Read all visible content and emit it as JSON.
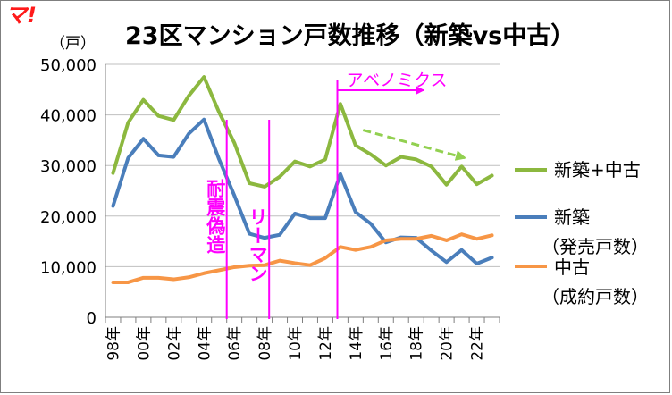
{
  "logo": {
    "text": "マ!",
    "color": "#ff1a1a"
  },
  "chart_data": {
    "type": "line",
    "title": "23区マンション戸数推移（新築vs中古）",
    "ylabel": "（戸）",
    "xlabel": "",
    "ylim": [
      0,
      50000
    ],
    "yticks": [
      0,
      10000,
      20000,
      30000,
      40000,
      50000
    ],
    "ytick_labels": [
      "0",
      "10,000",
      "20,000",
      "30,000",
      "40,000",
      "50,000"
    ],
    "x": [
      1998,
      1999,
      2000,
      2001,
      2002,
      2003,
      2004,
      2005,
      2006,
      2007,
      2008,
      2009,
      2010,
      2011,
      2012,
      2013,
      2014,
      2015,
      2016,
      2017,
      2018,
      2019,
      2020,
      2021,
      2022,
      2023
    ],
    "xtick_labels": [
      "98年",
      "00年",
      "02年",
      "04年",
      "06年",
      "08年",
      "10年",
      "12年",
      "14年",
      "16年",
      "18年",
      "20年",
      "22年"
    ],
    "xtick_years": [
      1998,
      2000,
      2002,
      2004,
      2006,
      2008,
      2010,
      2012,
      2014,
      2016,
      2018,
      2020,
      2022
    ],
    "grid": "horizontal",
    "series": [
      {
        "name": "新築+中古",
        "color": "#8cb83f",
        "values": [
          28500,
          38500,
          43000,
          39800,
          39000,
          43800,
          47500,
          40500,
          34500,
          26500,
          25800,
          27800,
          30800,
          29800,
          31200,
          42200,
          34000,
          32200,
          30000,
          31700,
          31200,
          29800,
          26200,
          29800,
          26300,
          28000
        ]
      },
      {
        "name": "新築",
        "color": "#4a7ebb",
        "values": [
          22000,
          31500,
          35300,
          32000,
          31700,
          36300,
          39100,
          31200,
          24100,
          16500,
          15700,
          16300,
          20500,
          19600,
          19600,
          28300,
          20800,
          18500,
          14800,
          15800,
          15700,
          13200,
          10900,
          13300,
          10600,
          11800
        ]
      },
      {
        "name": "中古",
        "color": "#f79646",
        "values": [
          6900,
          6900,
          7800,
          7800,
          7500,
          7900,
          8700,
          9300,
          9900,
          10200,
          10300,
          11200,
          10700,
          10300,
          11700,
          13900,
          13300,
          13900,
          15200,
          15500,
          15500,
          16100,
          15200,
          16400,
          15500,
          16200
        ]
      }
    ],
    "legend": [
      {
        "label": "新築+中古",
        "sub": "",
        "color": "#8cb83f"
      },
      {
        "label": "新築",
        "sub": "（発売戸数）",
        "color": "#4a7ebb"
      },
      {
        "label": "中古",
        "sub": "（成約戸数）",
        "color": "#f79646"
      }
    ],
    "legend_position": "right",
    "annotations": [
      {
        "label": "耐震偽造",
        "year": 2005.5,
        "color": "#ff00ff"
      },
      {
        "label": "リーマン",
        "year": 2008.3,
        "color": "#ff00ff"
      },
      {
        "label": "アベノミクス",
        "year": 2012.8,
        "color": "#ff00ff",
        "to_year": 2018.5
      }
    ],
    "trend_arrow": {
      "color": "#92d050",
      "from_year": 2014.5,
      "from_value": 37000,
      "to_year": 2021.2,
      "to_value": 31500
    }
  }
}
